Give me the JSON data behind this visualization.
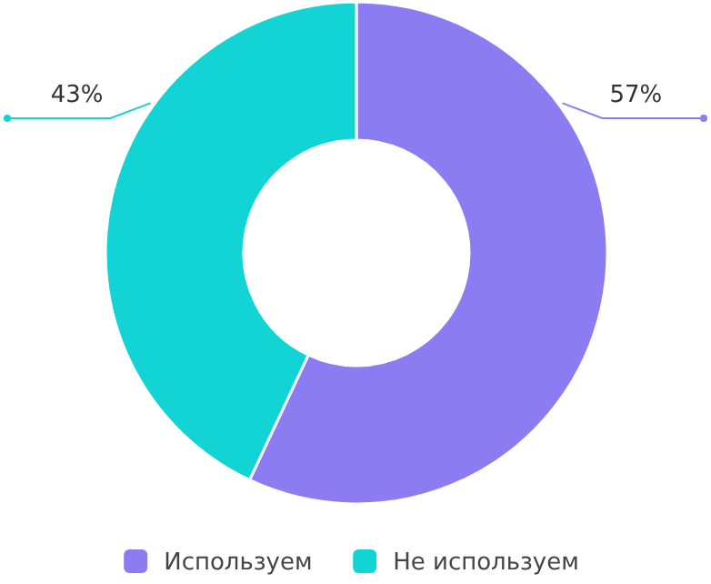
{
  "chart_data": {
    "type": "donut",
    "categories": [
      "Используем",
      "Не используем"
    ],
    "values": [
      57,
      43
    ],
    "colors": [
      "#8b7cf1",
      "#12d4d4"
    ],
    "value_labels": [
      "57%",
      "43%"
    ],
    "legend": "bottom"
  }
}
